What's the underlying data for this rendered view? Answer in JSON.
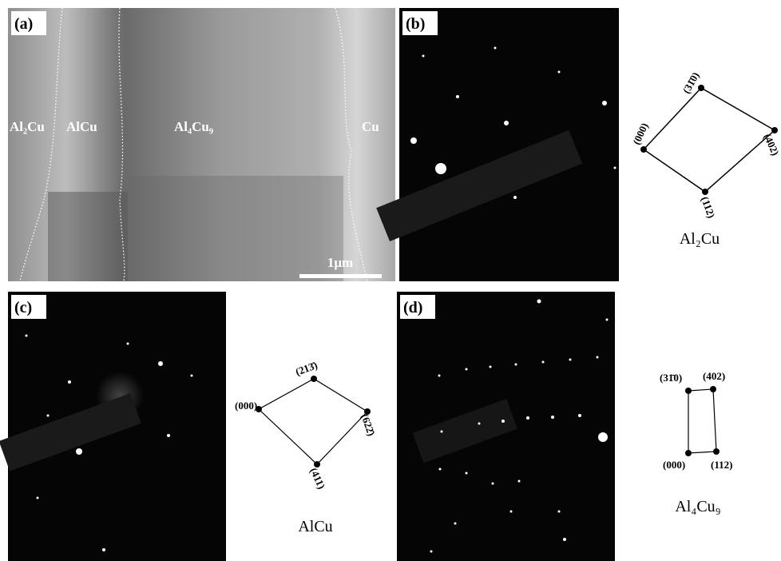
{
  "panels": [
    {
      "tag": "(a)",
      "phase_labels": [
        "Al₂Cu",
        "AlCu",
        "Al₄Cu₉",
        "Cu"
      ],
      "scale_bar": "1μm"
    },
    {
      "tag": "(b)",
      "indices": [
        "(000)",
        "(31̄0)",
        "(402)",
        "(112)"
      ],
      "compound": "Al₂Cu"
    },
    {
      "tag": "(c)",
      "indices": [
        "(000)",
        "(213̄)",
        "(622̄)",
        "(411)"
      ],
      "compound": "AlCu"
    },
    {
      "tag": "(d)",
      "indices": [
        "(31̄0)",
        "(402)",
        "(000)",
        "(112)"
      ],
      "compound": "Al₄Cu₉"
    }
  ]
}
